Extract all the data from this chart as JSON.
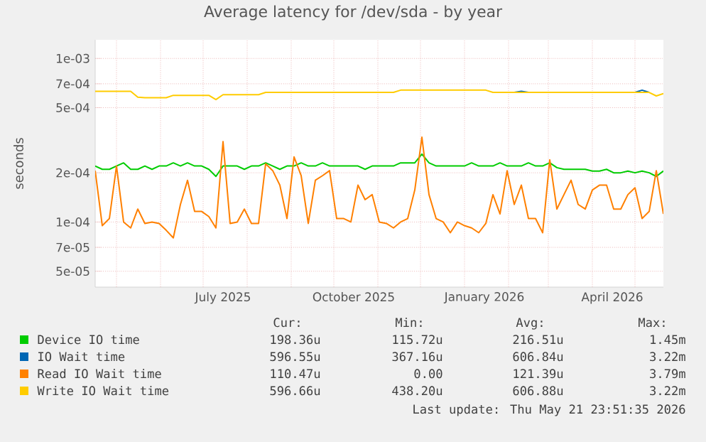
{
  "chart_data": {
    "type": "line",
    "title": "Average latency for /dev/sda - by year",
    "ylabel": "seconds",
    "log": "y",
    "grid": true,
    "legend": "bottom",
    "xlim": [
      "2025-04-16",
      "2026-05-21"
    ],
    "ylim": [
      4e-05,
      0.0013
    ],
    "yticks": [
      {
        "value": 5e-05,
        "label": "5e-05"
      },
      {
        "value": 7e-05,
        "label": "7e-05"
      },
      {
        "value": 0.0001,
        "label": "1e-04"
      },
      {
        "value": 0.0002,
        "label": "2e-04"
      },
      {
        "value": 0.0005,
        "label": "5e-04"
      },
      {
        "value": 0.0007,
        "label": "7e-04"
      },
      {
        "value": 0.001,
        "label": "1e-03"
      }
    ],
    "xticks": [
      {
        "value": "2025-05-01",
        "label": null
      },
      {
        "value": "2025-06-01",
        "label": null
      },
      {
        "value": "2025-07-01",
        "label": null
      },
      {
        "value": "2025-07-15",
        "label": "July 2025"
      },
      {
        "value": "2025-08-01",
        "label": null
      },
      {
        "value": "2025-09-01",
        "label": null
      },
      {
        "value": "2025-10-01",
        "label": null
      },
      {
        "value": "2025-10-15",
        "label": "October 2025"
      },
      {
        "value": "2025-11-01",
        "label": null
      },
      {
        "value": "2025-12-01",
        "label": null
      },
      {
        "value": "2026-01-01",
        "label": null
      },
      {
        "value": "2026-01-15",
        "label": "January 2026"
      },
      {
        "value": "2026-02-01",
        "label": null
      },
      {
        "value": "2026-03-01",
        "label": null
      },
      {
        "value": "2026-04-01",
        "label": null
      },
      {
        "value": "2026-04-15",
        "label": "April 2026"
      },
      {
        "value": "2026-05-01",
        "label": null
      }
    ],
    "x": [
      "2025-04-16",
      "2025-04-21",
      "2025-04-26",
      "2025-05-01",
      "2025-05-06",
      "2025-05-11",
      "2025-05-16",
      "2025-05-21",
      "2025-05-26",
      "2025-05-31",
      "2025-06-05",
      "2025-06-10",
      "2025-06-15",
      "2025-06-20",
      "2025-06-25",
      "2025-06-30",
      "2025-07-05",
      "2025-07-10",
      "2025-07-15",
      "2025-07-20",
      "2025-07-25",
      "2025-07-30",
      "2025-08-04",
      "2025-08-09",
      "2025-08-14",
      "2025-08-19",
      "2025-08-24",
      "2025-08-29",
      "2025-09-03",
      "2025-09-08",
      "2025-09-13",
      "2025-09-18",
      "2025-09-23",
      "2025-09-28",
      "2025-10-03",
      "2025-10-08",
      "2025-10-13",
      "2025-10-18",
      "2025-10-23",
      "2025-10-28",
      "2025-11-02",
      "2025-11-07",
      "2025-11-12",
      "2025-11-17",
      "2025-11-22",
      "2025-11-27",
      "2025-12-02",
      "2025-12-07",
      "2025-12-12",
      "2025-12-17",
      "2025-12-22",
      "2025-12-27",
      "2026-01-01",
      "2026-01-06",
      "2026-01-11",
      "2026-01-16",
      "2026-01-21",
      "2026-01-26",
      "2026-01-31",
      "2026-02-05",
      "2026-02-10",
      "2026-02-15",
      "2026-02-20",
      "2026-02-25",
      "2026-03-02",
      "2026-03-07",
      "2026-03-12",
      "2026-03-17",
      "2026-03-22",
      "2026-03-27",
      "2026-04-01",
      "2026-04-06",
      "2026-04-11",
      "2026-04-16",
      "2026-04-21",
      "2026-04-26",
      "2026-05-01",
      "2026-05-06",
      "2026-05-11",
      "2026-05-16",
      "2026-05-21"
    ],
    "series": [
      {
        "name": "Device IO time",
        "color": "#00cc00",
        "values": [
          0.00022,
          0.00021,
          0.00021,
          0.00022,
          0.00023,
          0.00021,
          0.00021,
          0.00022,
          0.00021,
          0.00022,
          0.00022,
          0.00023,
          0.00022,
          0.00023,
          0.00022,
          0.00022,
          0.00021,
          0.00019,
          0.00022,
          0.00022,
          0.00022,
          0.00021,
          0.00022,
          0.00022,
          0.00023,
          0.00022,
          0.00021,
          0.00022,
          0.00022,
          0.00023,
          0.00022,
          0.00022,
          0.00023,
          0.00022,
          0.00022,
          0.00022,
          0.00022,
          0.00022,
          0.00021,
          0.00022,
          0.00022,
          0.00022,
          0.00022,
          0.00023,
          0.00023,
          0.00023,
          0.00026,
          0.00023,
          0.00022,
          0.00022,
          0.00022,
          0.00022,
          0.00022,
          0.00023,
          0.00022,
          0.00022,
          0.00022,
          0.00023,
          0.00022,
          0.00022,
          0.00022,
          0.00023,
          0.00022,
          0.00022,
          0.00023,
          0.000215,
          0.00021,
          0.00021,
          0.00021,
          0.00021,
          0.000205,
          0.000205,
          0.00021,
          0.0002,
          0.0002,
          0.000205,
          0.0002,
          0.000205,
          0.0002,
          0.00019,
          0.000205
        ]
      },
      {
        "name": "IO Wait time",
        "color": "#0066b3",
        "values": [
          null,
          null,
          null,
          null,
          null,
          null,
          null,
          null,
          null,
          null,
          null,
          null,
          null,
          null,
          null,
          null,
          null,
          null,
          null,
          null,
          null,
          null,
          null,
          null,
          null,
          null,
          null,
          null,
          null,
          null,
          null,
          null,
          null,
          null,
          null,
          null,
          null,
          null,
          null,
          null,
          null,
          null,
          null,
          null,
          null,
          null,
          null,
          null,
          null,
          null,
          null,
          null,
          null,
          null,
          null,
          null,
          null,
          null,
          null,
          0.00062,
          0.00063,
          0.00062,
          null,
          null,
          null,
          null,
          null,
          null,
          null,
          null,
          null,
          null,
          null,
          null,
          null,
          null,
          0.00062,
          0.00064,
          0.00062,
          null,
          null
        ]
      },
      {
        "name": "Read IO Wait time",
        "color": "#ff8000",
        "values": [
          0.000206,
          9.5e-05,
          0.000105,
          0.00022,
          0.0001,
          9.2e-05,
          0.00012,
          9.8e-05,
          0.0001,
          9.8e-05,
          8.9e-05,
          8e-05,
          0.000128,
          0.00018,
          0.000116,
          0.000116,
          0.000108,
          9.2e-05,
          0.00031,
          9.8e-05,
          0.0001,
          0.00012,
          9.8e-05,
          9.8e-05,
          0.000227,
          0.000206,
          0.000168,
          0.000105,
          0.00025,
          0.000192,
          9.8e-05,
          0.00018,
          0.000192,
          0.000206,
          0.000105,
          0.000105,
          0.0001,
          0.000168,
          0.000137,
          0.000147,
          0.0001,
          9.8e-05,
          9.2e-05,
          0.0001,
          0.000105,
          0.000157,
          0.00033,
          0.000147,
          0.000105,
          0.0001,
          8.6e-05,
          0.0001,
          9.5e-05,
          9.2e-05,
          8.6e-05,
          9.8e-05,
          0.000147,
          0.000112,
          0.000206,
          0.000128,
          0.000168,
          0.000105,
          0.000105,
          8.6e-05,
          0.00024,
          0.00012,
          0.000147,
          0.00018,
          0.000128,
          0.00012,
          0.000157,
          0.000168,
          0.000168,
          0.00012,
          0.00012,
          0.000147,
          0.000162,
          0.000105,
          0.000116,
          0.000206,
          0.000112
        ]
      },
      {
        "name": "Write IO Wait time",
        "color": "#ffcc00",
        "values": [
          0.00063,
          0.00063,
          0.00063,
          0.00063,
          0.00063,
          0.00063,
          0.00058,
          0.000575,
          0.000575,
          0.000575,
          0.000575,
          0.000595,
          0.000595,
          0.000595,
          0.000595,
          0.000595,
          0.000595,
          0.00056,
          0.0006,
          0.0006,
          0.0006,
          0.0006,
          0.0006,
          0.0006,
          0.00062,
          0.00062,
          0.00062,
          0.00062,
          0.00062,
          0.00062,
          0.00062,
          0.00062,
          0.00062,
          0.00062,
          0.00062,
          0.00062,
          0.00062,
          0.00062,
          0.00062,
          0.00062,
          0.00062,
          0.00062,
          0.00062,
          0.00064,
          0.00064,
          0.00064,
          0.00064,
          0.00064,
          0.00064,
          0.00064,
          0.00064,
          0.00064,
          0.00064,
          0.00064,
          0.00064,
          0.00064,
          0.00062,
          0.00062,
          0.00062,
          0.00062,
          0.00062,
          0.00062,
          0.00062,
          0.00062,
          0.00062,
          0.00062,
          0.00062,
          0.00062,
          0.00062,
          0.00062,
          0.00062,
          0.00062,
          0.00062,
          0.00062,
          0.00062,
          0.00062,
          0.00062,
          0.00062,
          0.00062,
          0.00059,
          0.00061
        ]
      }
    ],
    "annotations": [
      "Cur:",
      "Min:",
      "Avg:",
      "Max:",
      "198.36u",
      "115.72u",
      "216.51u",
      "1.45m",
      "596.55u",
      "367.16u",
      "606.84u",
      "3.22m",
      "110.47u",
      "0.00",
      "121.39u",
      "3.79m",
      "596.66u",
      "438.20u",
      "606.88u",
      "3.22m",
      "Last update: Thu May 21 23:51:35 2026"
    ]
  }
}
